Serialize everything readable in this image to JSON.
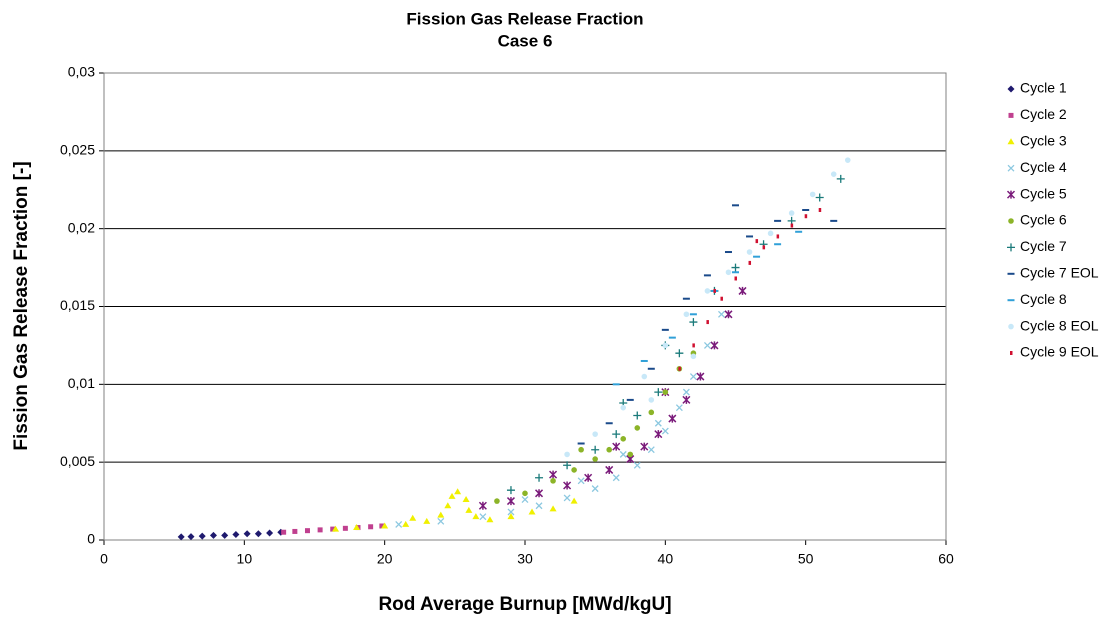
{
  "chart_data": {
    "type": "scatter",
    "title": "Fission Gas Release Fraction",
    "subtitle": "Case 6",
    "x_label": "Rod Average Burnup [MWd/kgU]",
    "y_label": "Fission Gas Release Fraction [-]",
    "xlim": [
      0,
      60
    ],
    "xticks": [
      0,
      10,
      20,
      30,
      40,
      50,
      60
    ],
    "ylim": [
      0,
      0.03
    ],
    "yticks": [
      0,
      {
        "value": 0.005,
        "label": "0,005"
      },
      {
        "value": 0.01,
        "label": "0,01"
      },
      {
        "value": 0.015,
        "label": "0,015"
      },
      {
        "value": 0.02,
        "label": "0,02"
      },
      {
        "value": 0.025,
        "label": "0,025"
      },
      {
        "value": 0.03,
        "label": "0,03"
      }
    ],
    "grid": true,
    "legend": "right",
    "series": [
      {
        "name": "Cycle 1",
        "color": "#1f1a6e",
        "marker": "diamond",
        "x": [
          5.5,
          6.2,
          7,
          7.8,
          8.6,
          9.4,
          10.2,
          11,
          11.8,
          12.6
        ],
        "values": [
          0.0002,
          0.00022,
          0.00025,
          0.0003,
          0.0003,
          0.00035,
          0.0004,
          0.0004,
          0.00045,
          0.0005
        ]
      },
      {
        "name": "Cycle 2",
        "color": "#c0408f",
        "marker": "square",
        "x": [
          12.8,
          13.6,
          14.5,
          15.4,
          16.3,
          17.2,
          18.1,
          19,
          19.8
        ],
        "values": [
          0.0005,
          0.00055,
          0.0006,
          0.00065,
          0.0007,
          0.00075,
          0.0008,
          0.00085,
          0.0009
        ]
      },
      {
        "name": "Cycle 3",
        "color": "#f0f000",
        "marker": "triangle",
        "x": [
          16.5,
          18,
          20,
          21.5,
          23,
          24,
          24.8,
          25.2,
          25.8,
          26.5,
          27.5,
          29,
          30.5,
          32,
          33.5,
          22,
          24.5,
          26
        ],
        "values": [
          0.0007,
          0.0008,
          0.0009,
          0.001,
          0.0012,
          0.0016,
          0.0028,
          0.0031,
          0.0026,
          0.0015,
          0.0013,
          0.0015,
          0.0018,
          0.002,
          0.0025,
          0.0014,
          0.0022,
          0.0019
        ]
      },
      {
        "name": "Cycle 4",
        "color": "#8cc8e0",
        "marker": "x",
        "x": [
          21,
          24,
          27,
          29,
          31,
          33,
          35,
          36.5,
          38,
          39,
          40,
          41,
          42,
          43,
          44,
          30,
          34,
          37,
          39.5,
          41.5
        ],
        "values": [
          0.001,
          0.0012,
          0.0015,
          0.0018,
          0.0022,
          0.0027,
          0.0033,
          0.004,
          0.0048,
          0.0058,
          0.007,
          0.0085,
          0.0105,
          0.0125,
          0.0145,
          0.0026,
          0.0038,
          0.0055,
          0.0075,
          0.0095
        ]
      },
      {
        "name": "Cycle 5",
        "color": "#7a1a7a",
        "marker": "star",
        "x": [
          27,
          29,
          31,
          33,
          34.5,
          36,
          37.5,
          38.5,
          39.5,
          40.5,
          41.5,
          42.5,
          43.5,
          44.5,
          45.5,
          32,
          36.5,
          40
        ],
        "values": [
          0.0022,
          0.0025,
          0.003,
          0.0035,
          0.004,
          0.0045,
          0.0052,
          0.006,
          0.0068,
          0.0078,
          0.009,
          0.0105,
          0.0125,
          0.0145,
          0.016,
          0.0042,
          0.006,
          0.0095
        ]
      },
      {
        "name": "Cycle 6",
        "color": "#8cb428",
        "marker": "circle",
        "x": [
          28,
          30,
          32,
          33.5,
          35,
          36,
          37,
          38,
          39,
          40,
          41,
          42,
          34,
          37.5
        ],
        "values": [
          0.0025,
          0.003,
          0.0038,
          0.0045,
          0.0052,
          0.0058,
          0.0065,
          0.0072,
          0.0082,
          0.0095,
          0.011,
          0.012,
          0.0058,
          0.0055
        ]
      },
      {
        "name": "Cycle 7",
        "color": "#1a7a7a",
        "marker": "plus",
        "x": [
          29,
          31,
          33,
          35,
          36.5,
          38,
          39.5,
          41,
          42,
          43.5,
          45,
          47,
          49,
          51,
          52.5,
          37,
          40
        ],
        "values": [
          0.0032,
          0.004,
          0.0048,
          0.0058,
          0.0068,
          0.008,
          0.0095,
          0.012,
          0.014,
          0.016,
          0.0175,
          0.019,
          0.0205,
          0.022,
          0.0232,
          0.0088,
          0.0125
        ]
      },
      {
        "name": "Cycle 7 EOL",
        "color": "#1a4a8a",
        "marker": "dash",
        "x": [
          34,
          36,
          37.5,
          39,
          40,
          41.5,
          43,
          44.5,
          46,
          48,
          50,
          52,
          45
        ],
        "values": [
          0.0062,
          0.0075,
          0.009,
          0.011,
          0.0135,
          0.0155,
          0.017,
          0.0185,
          0.0195,
          0.0205,
          0.0212,
          0.0205,
          0.0215
        ]
      },
      {
        "name": "Cycle 8",
        "color": "#30a0d8",
        "marker": "dash",
        "x": [
          36.5,
          38.5,
          40.5,
          42,
          43.5,
          45,
          46.5,
          48,
          49.5
        ],
        "values": [
          0.01,
          0.0115,
          0.013,
          0.0145,
          0.016,
          0.0172,
          0.0182,
          0.019,
          0.0198
        ]
      },
      {
        "name": "Cycle 8 EOL",
        "color": "#c8e8f8",
        "marker": "circle",
        "x": [
          33,
          35,
          37,
          38.5,
          40,
          41.5,
          43,
          44.5,
          46,
          47.5,
          49,
          50.5,
          52,
          53,
          39,
          42
        ],
        "values": [
          0.0055,
          0.0068,
          0.0085,
          0.0105,
          0.0125,
          0.0145,
          0.016,
          0.0172,
          0.0185,
          0.0197,
          0.021,
          0.0222,
          0.0235,
          0.0244,
          0.009,
          0.0118
        ]
      },
      {
        "name": "Cycle 9 EOL",
        "color": "#d01030",
        "marker": "dot",
        "x": [
          41,
          42,
          43,
          44,
          45,
          46,
          47,
          48,
          49,
          50,
          51,
          43.5,
          46.5
        ],
        "values": [
          0.011,
          0.0125,
          0.014,
          0.0155,
          0.0168,
          0.0178,
          0.0188,
          0.0195,
          0.0202,
          0.0208,
          0.0212,
          0.016,
          0.0192
        ]
      }
    ]
  }
}
